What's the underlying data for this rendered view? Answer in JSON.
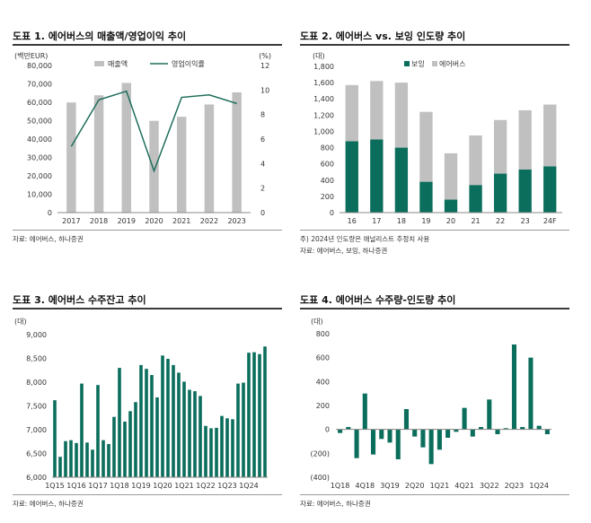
{
  "colors": {
    "gray": "#c0c0c0",
    "green": "#0b6e5c",
    "line": "#1f6f5c"
  },
  "charts": [
    {
      "title": "도표 1. 에어버스의 매출액/영업이익 추이",
      "source": "자료: 에어버스, 하나증권",
      "note": ""
    },
    {
      "title": "도표 2. 에어버스 vs. 보잉 인도량 추이",
      "source": "자료: 에어버스, 보잉, 하나증권",
      "note": "주) 2024년 인도량은 애널리스트 추정치 사용"
    },
    {
      "title": "도표 3. 에어버스 수주잔고 추이",
      "source": "자료: 에어버스, 하나증권",
      "note": ""
    },
    {
      "title": "도표 4. 에어버스 수주량-인도량 추이",
      "source": "자료: 에어버스, 하나증권",
      "note": ""
    }
  ],
  "chart_data": [
    {
      "type": "bar",
      "title": "",
      "categories": [
        "2017",
        "2018",
        "2019",
        "2020",
        "2021",
        "2022",
        "2023"
      ],
      "left_axis_label": "(백만EUR)",
      "right_axis_label": "(%)",
      "ylim": [
        0,
        80000
      ],
      "yticks": [
        "0",
        "10,000",
        "20,000",
        "30,000",
        "40,000",
        "50,000",
        "60,000",
        "70,000",
        "80,000"
      ],
      "y2lim": [
        0,
        12
      ],
      "y2ticks": [
        "0",
        "2",
        "4",
        "6",
        "8",
        "10",
        "12"
      ],
      "legend_position": "top",
      "series": [
        {
          "name": "매출액",
          "type": "bar",
          "axis": "left",
          "values": [
            59900,
            63800,
            70500,
            49900,
            52100,
            58800,
            65400
          ]
        },
        {
          "name": "영업이익률",
          "type": "line",
          "axis": "right",
          "values": [
            5.4,
            9.2,
            9.9,
            3.4,
            9.4,
            9.6,
            8.9
          ]
        }
      ]
    },
    {
      "type": "bar",
      "stacked": true,
      "title": "",
      "categories": [
        "16",
        "17",
        "18",
        "19",
        "20",
        "21",
        "22",
        "23",
        "24F"
      ],
      "left_axis_label": "(대)",
      "ylim": [
        0,
        1800
      ],
      "yticks": [
        "0",
        "200",
        "400",
        "600",
        "800",
        "1,000",
        "1,200",
        "1,400",
        "1,600",
        "1,800"
      ],
      "legend_position": "top",
      "series": [
        {
          "name": "보잉",
          "values": [
            880,
            900,
            800,
            380,
            160,
            340,
            480,
            530,
            570
          ]
        },
        {
          "name": "에어버스",
          "values": [
            690,
            720,
            800,
            860,
            570,
            610,
            660,
            730,
            760
          ]
        }
      ]
    },
    {
      "type": "bar",
      "title": "",
      "left_axis_label": "(대)",
      "ylim": [
        6000,
        9000
      ],
      "yticks": [
        "6,000",
        "6,500",
        "7,000",
        "7,500",
        "8,000",
        "8,500",
        "9,000"
      ],
      "categories": [
        "1Q15",
        "2Q15",
        "3Q15",
        "4Q15",
        "1Q16",
        "2Q16",
        "3Q16",
        "4Q16",
        "1Q17",
        "2Q17",
        "3Q17",
        "4Q17",
        "1Q18",
        "2Q18",
        "3Q18",
        "4Q18",
        "1Q19",
        "2Q19",
        "3Q19",
        "4Q19",
        "1Q20",
        "2Q20",
        "3Q20",
        "4Q20",
        "1Q21",
        "2Q21",
        "3Q21",
        "4Q21",
        "1Q22",
        "2Q22",
        "3Q22",
        "4Q22",
        "1Q23",
        "2Q23",
        "3Q23",
        "4Q23",
        "1Q24",
        "2Q24",
        "3Q24",
        "4Q24"
      ],
      "tick_labels": [
        "1Q15",
        "1Q16",
        "1Q17",
        "1Q18",
        "1Q19",
        "1Q20",
        "1Q21",
        "1Q22",
        "1Q23",
        "1Q24"
      ],
      "values": [
        7620,
        6430,
        6760,
        6780,
        6720,
        7970,
        6730,
        6580,
        7940,
        6780,
        6700,
        7270,
        8300,
        7170,
        7390,
        7580,
        8360,
        8280,
        8150,
        7680,
        8560,
        8490,
        8360,
        8200,
        8010,
        7840,
        7810,
        7710,
        7080,
        7030,
        7040,
        7290,
        7240,
        7220,
        7970,
        7990,
        8620,
        8630,
        8590,
        8750
      ]
    },
    {
      "type": "bar",
      "title": "",
      "left_axis_label": "(대)",
      "ylim": [
        -400,
        800
      ],
      "yticks": [
        "(400)",
        "(200)",
        "0",
        "200",
        "400",
        "600",
        "800"
      ],
      "categories": [
        "1Q18",
        "2Q18",
        "3Q18",
        "4Q18",
        "1Q19",
        "2Q19",
        "3Q19",
        "4Q19",
        "1Q20",
        "2Q20",
        "3Q20",
        "4Q20",
        "1Q21",
        "2Q21",
        "3Q21",
        "4Q21",
        "1Q22",
        "2Q22",
        "3Q22",
        "4Q22",
        "1Q23",
        "2Q23",
        "3Q23",
        "4Q23",
        "1Q24",
        "2Q24"
      ],
      "tick_labels": [
        "1Q18",
        "4Q18",
        "3Q19",
        "2Q20",
        "1Q21",
        "4Q21",
        "3Q22",
        "2Q23",
        "1Q24"
      ],
      "tick_positions": [
        0,
        3,
        6,
        9,
        12,
        15,
        18,
        21,
        24
      ],
      "values": [
        -30,
        20,
        -240,
        300,
        -210,
        -80,
        -110,
        -250,
        170,
        -60,
        -150,
        -290,
        -170,
        -70,
        -20,
        180,
        -60,
        20,
        250,
        -40,
        10,
        710,
        20,
        600,
        30,
        -40
      ]
    }
  ]
}
